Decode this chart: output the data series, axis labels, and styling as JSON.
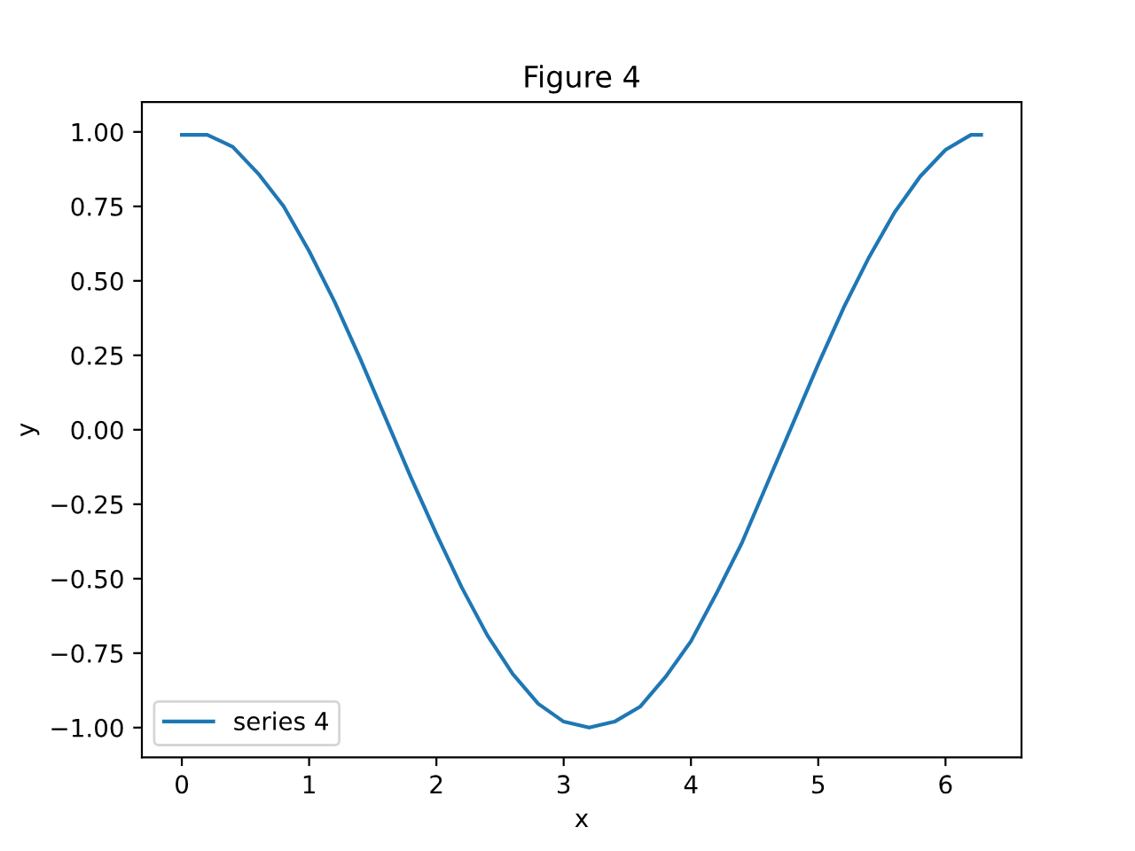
{
  "chart_data": {
    "type": "line",
    "title": "Figure 4",
    "xlabel": "x",
    "ylabel": "y",
    "x": [
      0,
      0.2,
      0.4,
      0.6,
      0.8,
      1.0,
      1.2,
      1.4,
      1.6,
      1.8,
      2.0,
      2.2,
      2.4,
      2.6,
      2.8,
      3.0,
      3.2,
      3.4,
      3.6,
      3.8,
      4.0,
      4.2,
      4.4,
      4.6,
      4.8,
      5.0,
      5.2,
      5.4,
      5.6,
      5.8,
      6.0,
      6.2,
      6.28
    ],
    "series": [
      {
        "name": "series 4",
        "color": "#1f77b4",
        "values": [
          0.99,
          0.99,
          0.95,
          0.86,
          0.75,
          0.6,
          0.43,
          0.24,
          0.04,
          -0.16,
          -0.35,
          -0.53,
          -0.69,
          -0.82,
          -0.92,
          -0.98,
          -1.0,
          -0.98,
          -0.93,
          -0.83,
          -0.71,
          -0.55,
          -0.38,
          -0.18,
          0.02,
          0.22,
          0.41,
          0.58,
          0.73,
          0.85,
          0.94,
          0.99,
          0.99
        ]
      }
    ],
    "xlim": [
      -0.314,
      6.597
    ],
    "ylim": [
      -1.1,
      1.1
    ],
    "xticks": [
      0,
      1,
      2,
      3,
      4,
      5,
      6
    ],
    "yticks": [
      {
        "value": -1,
        "label": "−1.00"
      },
      {
        "value": -0.75,
        "label": "−0.75"
      },
      {
        "value": -0.5,
        "label": "−0.50"
      },
      {
        "value": -0.25,
        "label": "−0.25"
      },
      {
        "value": 0,
        "label": "0.00"
      },
      {
        "value": 0.25,
        "label": "0.25"
      },
      {
        "value": 0.5,
        "label": "0.50"
      },
      {
        "value": 0.75,
        "label": "0.75"
      },
      {
        "value": 1,
        "label": "1.00"
      }
    ],
    "legend": "lower left",
    "grid": false
  }
}
